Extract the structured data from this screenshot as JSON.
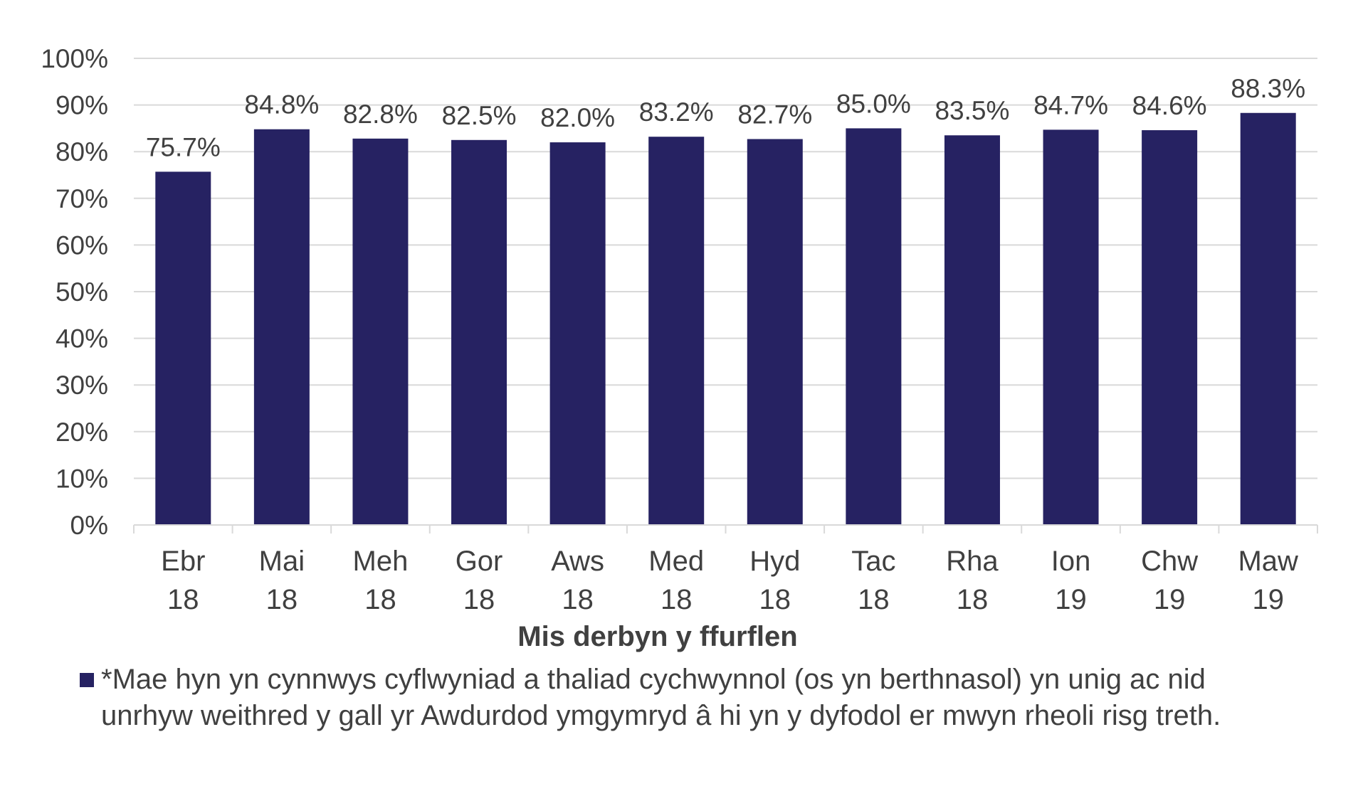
{
  "chart_data": {
    "type": "bar",
    "categories": [
      [
        "Ebr",
        "18"
      ],
      [
        "Mai",
        "18"
      ],
      [
        "Meh",
        "18"
      ],
      [
        "Gor",
        "18"
      ],
      [
        "Aws",
        "18"
      ],
      [
        "Med",
        "18"
      ],
      [
        "Hyd",
        "18"
      ],
      [
        "Tac",
        "18"
      ],
      [
        "Rha",
        "18"
      ],
      [
        "Ion",
        "19"
      ],
      [
        "Chw",
        "19"
      ],
      [
        "Maw",
        "19"
      ]
    ],
    "values": [
      75.7,
      84.8,
      82.8,
      82.5,
      82.0,
      83.2,
      82.7,
      85.0,
      83.5,
      84.7,
      84.6,
      88.3
    ],
    "data_labels": [
      "75.7%",
      "84.8%",
      "82.8%",
      "82.5%",
      "82.0%",
      "83.2%",
      "82.7%",
      "85.0%",
      "83.5%",
      "84.7%",
      "84.6%",
      "88.3%"
    ],
    "xlabel": "Mis derbyn y ffurflen",
    "ylabel": "",
    "ylim": [
      0,
      100
    ],
    "yticks": [
      "0%",
      "10%",
      "20%",
      "30%",
      "40%",
      "50%",
      "60%",
      "70%",
      "80%",
      "90%",
      "100%"
    ],
    "grid": true,
    "bar_color": "#262262",
    "legend": {
      "position": "bottom",
      "entries": [
        "*Mae hyn yn cynnwys cyflwyniad a thaliad cychwynnol (os yn berthnasol) yn unig ac nid unrhyw weithred y gall yr Awdurdod ymgymryd â hi yn y dyfodol er mwyn rheoli risg treth."
      ]
    }
  }
}
